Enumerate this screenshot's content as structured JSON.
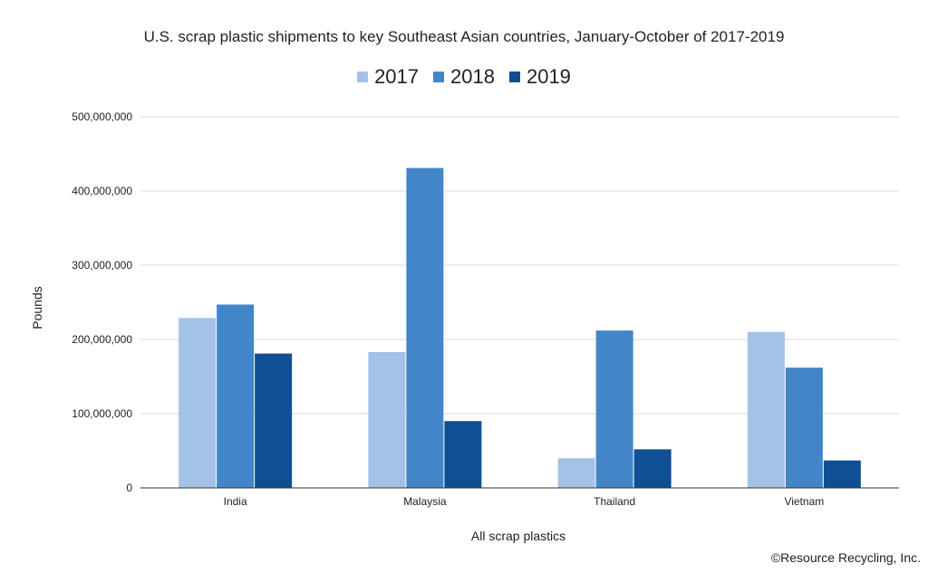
{
  "chart_data": {
    "type": "bar",
    "title": "U.S. scrap plastic shipments to key Southeast Asian countries, January-October of 2017-2019",
    "xlabel": "All scrap plastics",
    "ylabel": "Pounds",
    "categories": [
      "India",
      "Malaysia",
      "Thailand",
      "Vietnam"
    ],
    "series": [
      {
        "name": "2017",
        "color": "#a4c2e8",
        "values": [
          229000000,
          183000000,
          40000000,
          210000000
        ]
      },
      {
        "name": "2018",
        "color": "#4286c9",
        "values": [
          247000000,
          431000000,
          212000000,
          162000000
        ]
      },
      {
        "name": "2019",
        "color": "#0f4f93",
        "values": [
          181000000,
          90000000,
          52000000,
          37000000
        ]
      }
    ],
    "ylim": [
      0,
      500000000
    ],
    "yticks": [
      0,
      100000000,
      200000000,
      300000000,
      400000000,
      500000000
    ],
    "ytick_labels": [
      "0",
      "100,000,000",
      "200,000,000",
      "300,000,000",
      "400,000,000",
      "500,000,000"
    ],
    "grid": true,
    "legend_position": "top-center"
  },
  "credit": "©Resource Recycling, Inc."
}
